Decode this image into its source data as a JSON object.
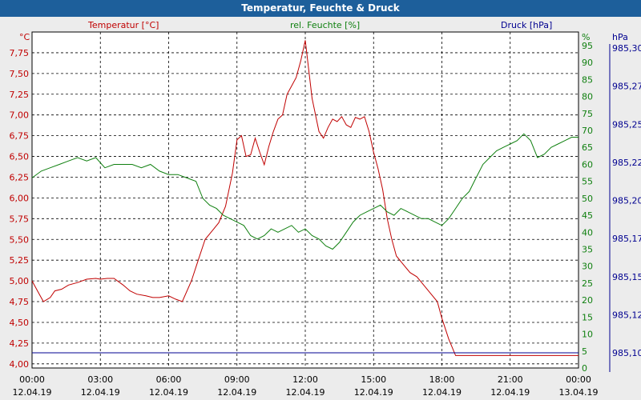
{
  "window": {
    "title": "Temperatur, Feuchte & Druck"
  },
  "headers": {
    "temperature": "Temperatur [°C]",
    "humidity": "rel. Feuchte [%]",
    "pressure": "Druck [hPa]"
  },
  "colors": {
    "temperature": "#c00000",
    "humidity": "#108010",
    "pressure": "#000090",
    "titlebar": "#1d5f9b"
  },
  "chart_data": {
    "type": "line",
    "title": "Temperatur, Feuchte & Druck",
    "grid": true,
    "x_ticks": [
      {
        "time": "00:00",
        "date": "12.04.19"
      },
      {
        "time": "03:00",
        "date": "12.04.19"
      },
      {
        "time": "06:00",
        "date": "12.04.19"
      },
      {
        "time": "09:00",
        "date": "12.04.19"
      },
      {
        "time": "12:00",
        "date": "12.04.19"
      },
      {
        "time": "15:00",
        "date": "12.04.19"
      },
      {
        "time": "18:00",
        "date": "12.04.19"
      },
      {
        "time": "21:00",
        "date": "12.04.19"
      },
      {
        "time": "00:00",
        "date": "13.04.19"
      }
    ],
    "x_range_hours": [
      0,
      24
    ],
    "axes": {
      "temperature": {
        "unit": "°C",
        "ylim": [
          3.95,
          8.0
        ],
        "ticks": [
          "4,00",
          "4,25",
          "4,50",
          "4,75",
          "5,00",
          "5,25",
          "5,50",
          "5,75",
          "6,00",
          "6,25",
          "6,50",
          "6,75",
          "7,00",
          "7,25",
          "7,50",
          "7,75"
        ]
      },
      "humidity": {
        "unit": "%",
        "ylim": [
          0,
          99
        ],
        "ticks": [
          "0",
          "5",
          "10",
          "15",
          "20",
          "25",
          "30",
          "35",
          "40",
          "45",
          "50",
          "55",
          "60",
          "65",
          "70",
          "75",
          "80",
          "85",
          "90",
          "95"
        ]
      },
      "pressure": {
        "unit": "hPa",
        "ticks": [
          "985,10",
          "985,12",
          "985,15",
          "985,17",
          "985,20",
          "985,22",
          "985,25",
          "985,27",
          "985,30"
        ]
      }
    },
    "series": [
      {
        "name": "Temperatur [°C]",
        "axis": "temperature",
        "x": [
          0,
          0.3,
          0.5,
          0.8,
          1.0,
          1.3,
          1.6,
          2.0,
          2.4,
          2.8,
          3.0,
          3.3,
          3.6,
          4.0,
          4.3,
          4.6,
          5.0,
          5.3,
          5.6,
          6.0,
          6.3,
          6.6,
          7.0,
          7.3,
          7.6,
          7.9,
          8.2,
          8.5,
          8.8,
          9.0,
          9.2,
          9.4,
          9.6,
          9.8,
          10.0,
          10.2,
          10.4,
          10.6,
          10.8,
          11.0,
          11.2,
          11.4,
          11.6,
          11.8,
          12.0,
          12.3,
          12.6,
          12.8,
          13.0,
          13.2,
          13.4,
          13.6,
          13.8,
          14.0,
          14.2,
          14.4,
          14.6,
          14.8,
          15.0,
          15.2,
          15.4,
          15.6,
          15.8,
          16.0,
          16.3,
          16.6,
          16.9,
          17.2,
          17.5,
          17.8,
          18.0,
          18.3,
          18.6,
          18.9,
          19.2,
          19.6,
          20.0,
          20.3,
          20.6,
          21.0,
          21.4,
          21.8,
          22.1,
          22.4,
          22.7,
          23.0,
          23.3,
          23.6,
          24.0
        ],
        "values": [
          5.0,
          4.85,
          4.75,
          4.8,
          4.88,
          4.9,
          4.95,
          4.98,
          5.02,
          5.03,
          5.02,
          5.03,
          5.03,
          4.95,
          4.88,
          4.84,
          4.82,
          4.8,
          4.8,
          4.82,
          4.78,
          4.75,
          5.0,
          5.25,
          5.5,
          5.6,
          5.7,
          5.9,
          6.3,
          6.7,
          6.75,
          6.5,
          6.52,
          6.72,
          6.55,
          6.4,
          6.62,
          6.8,
          6.95,
          7.0,
          7.25,
          7.35,
          7.45,
          7.65,
          7.9,
          7.2,
          6.8,
          6.72,
          6.85,
          6.95,
          6.92,
          6.98,
          6.88,
          6.85,
          6.97,
          6.95,
          6.98,
          6.8,
          6.55,
          6.35,
          6.1,
          5.75,
          5.5,
          5.3,
          5.2,
          5.1,
          5.05,
          4.95,
          4.85,
          4.75,
          4.55,
          4.3,
          4.1,
          4.1,
          4.1,
          4.1,
          4.1,
          4.1,
          4.1,
          4.1,
          4.1,
          4.1,
          4.1,
          4.1,
          4.1,
          4.1,
          4.1,
          4.1,
          4.1
        ]
      },
      {
        "name": "rel. Feuchte [%]",
        "axis": "humidity",
        "x": [
          0,
          0.4,
          0.8,
          1.2,
          1.6,
          2.0,
          2.4,
          2.8,
          3.2,
          3.6,
          4.0,
          4.4,
          4.8,
          5.2,
          5.6,
          6.0,
          6.4,
          6.8,
          7.2,
          7.5,
          7.8,
          8.1,
          8.4,
          8.7,
          9.0,
          9.3,
          9.6,
          9.9,
          10.2,
          10.5,
          10.8,
          11.1,
          11.4,
          11.7,
          12.0,
          12.3,
          12.6,
          12.9,
          13.2,
          13.5,
          13.8,
          14.1,
          14.4,
          14.7,
          15.0,
          15.3,
          15.6,
          15.9,
          16.2,
          16.5,
          16.8,
          17.1,
          17.4,
          17.7,
          18.0,
          18.3,
          18.6,
          18.9,
          19.2,
          19.5,
          19.8,
          20.1,
          20.4,
          20.7,
          21.0,
          21.3,
          21.6,
          21.9,
          22.2,
          22.5,
          22.8,
          23.1,
          23.4,
          23.7,
          24.0
        ],
        "values": [
          56,
          58,
          59,
          60,
          61,
          62,
          61,
          62,
          59,
          60,
          60,
          60,
          59,
          60,
          58,
          57,
          57,
          56,
          55,
          50,
          48,
          47,
          45,
          44,
          43,
          42,
          39,
          38,
          39,
          41,
          40,
          41,
          42,
          40,
          41,
          39,
          38,
          36,
          35,
          37,
          40,
          43,
          45,
          46,
          47,
          48,
          46,
          45,
          47,
          46,
          45,
          44,
          44,
          43,
          42,
          44,
          47,
          50,
          52,
          56,
          60,
          62,
          64,
          65,
          66,
          67,
          69,
          67,
          62,
          63,
          65,
          66,
          67,
          68,
          68
        ]
      },
      {
        "name": "Druck [hPa]",
        "axis": "pressure",
        "x": [
          0,
          24
        ],
        "values": [
          985.1,
          985.1
        ]
      }
    ]
  }
}
